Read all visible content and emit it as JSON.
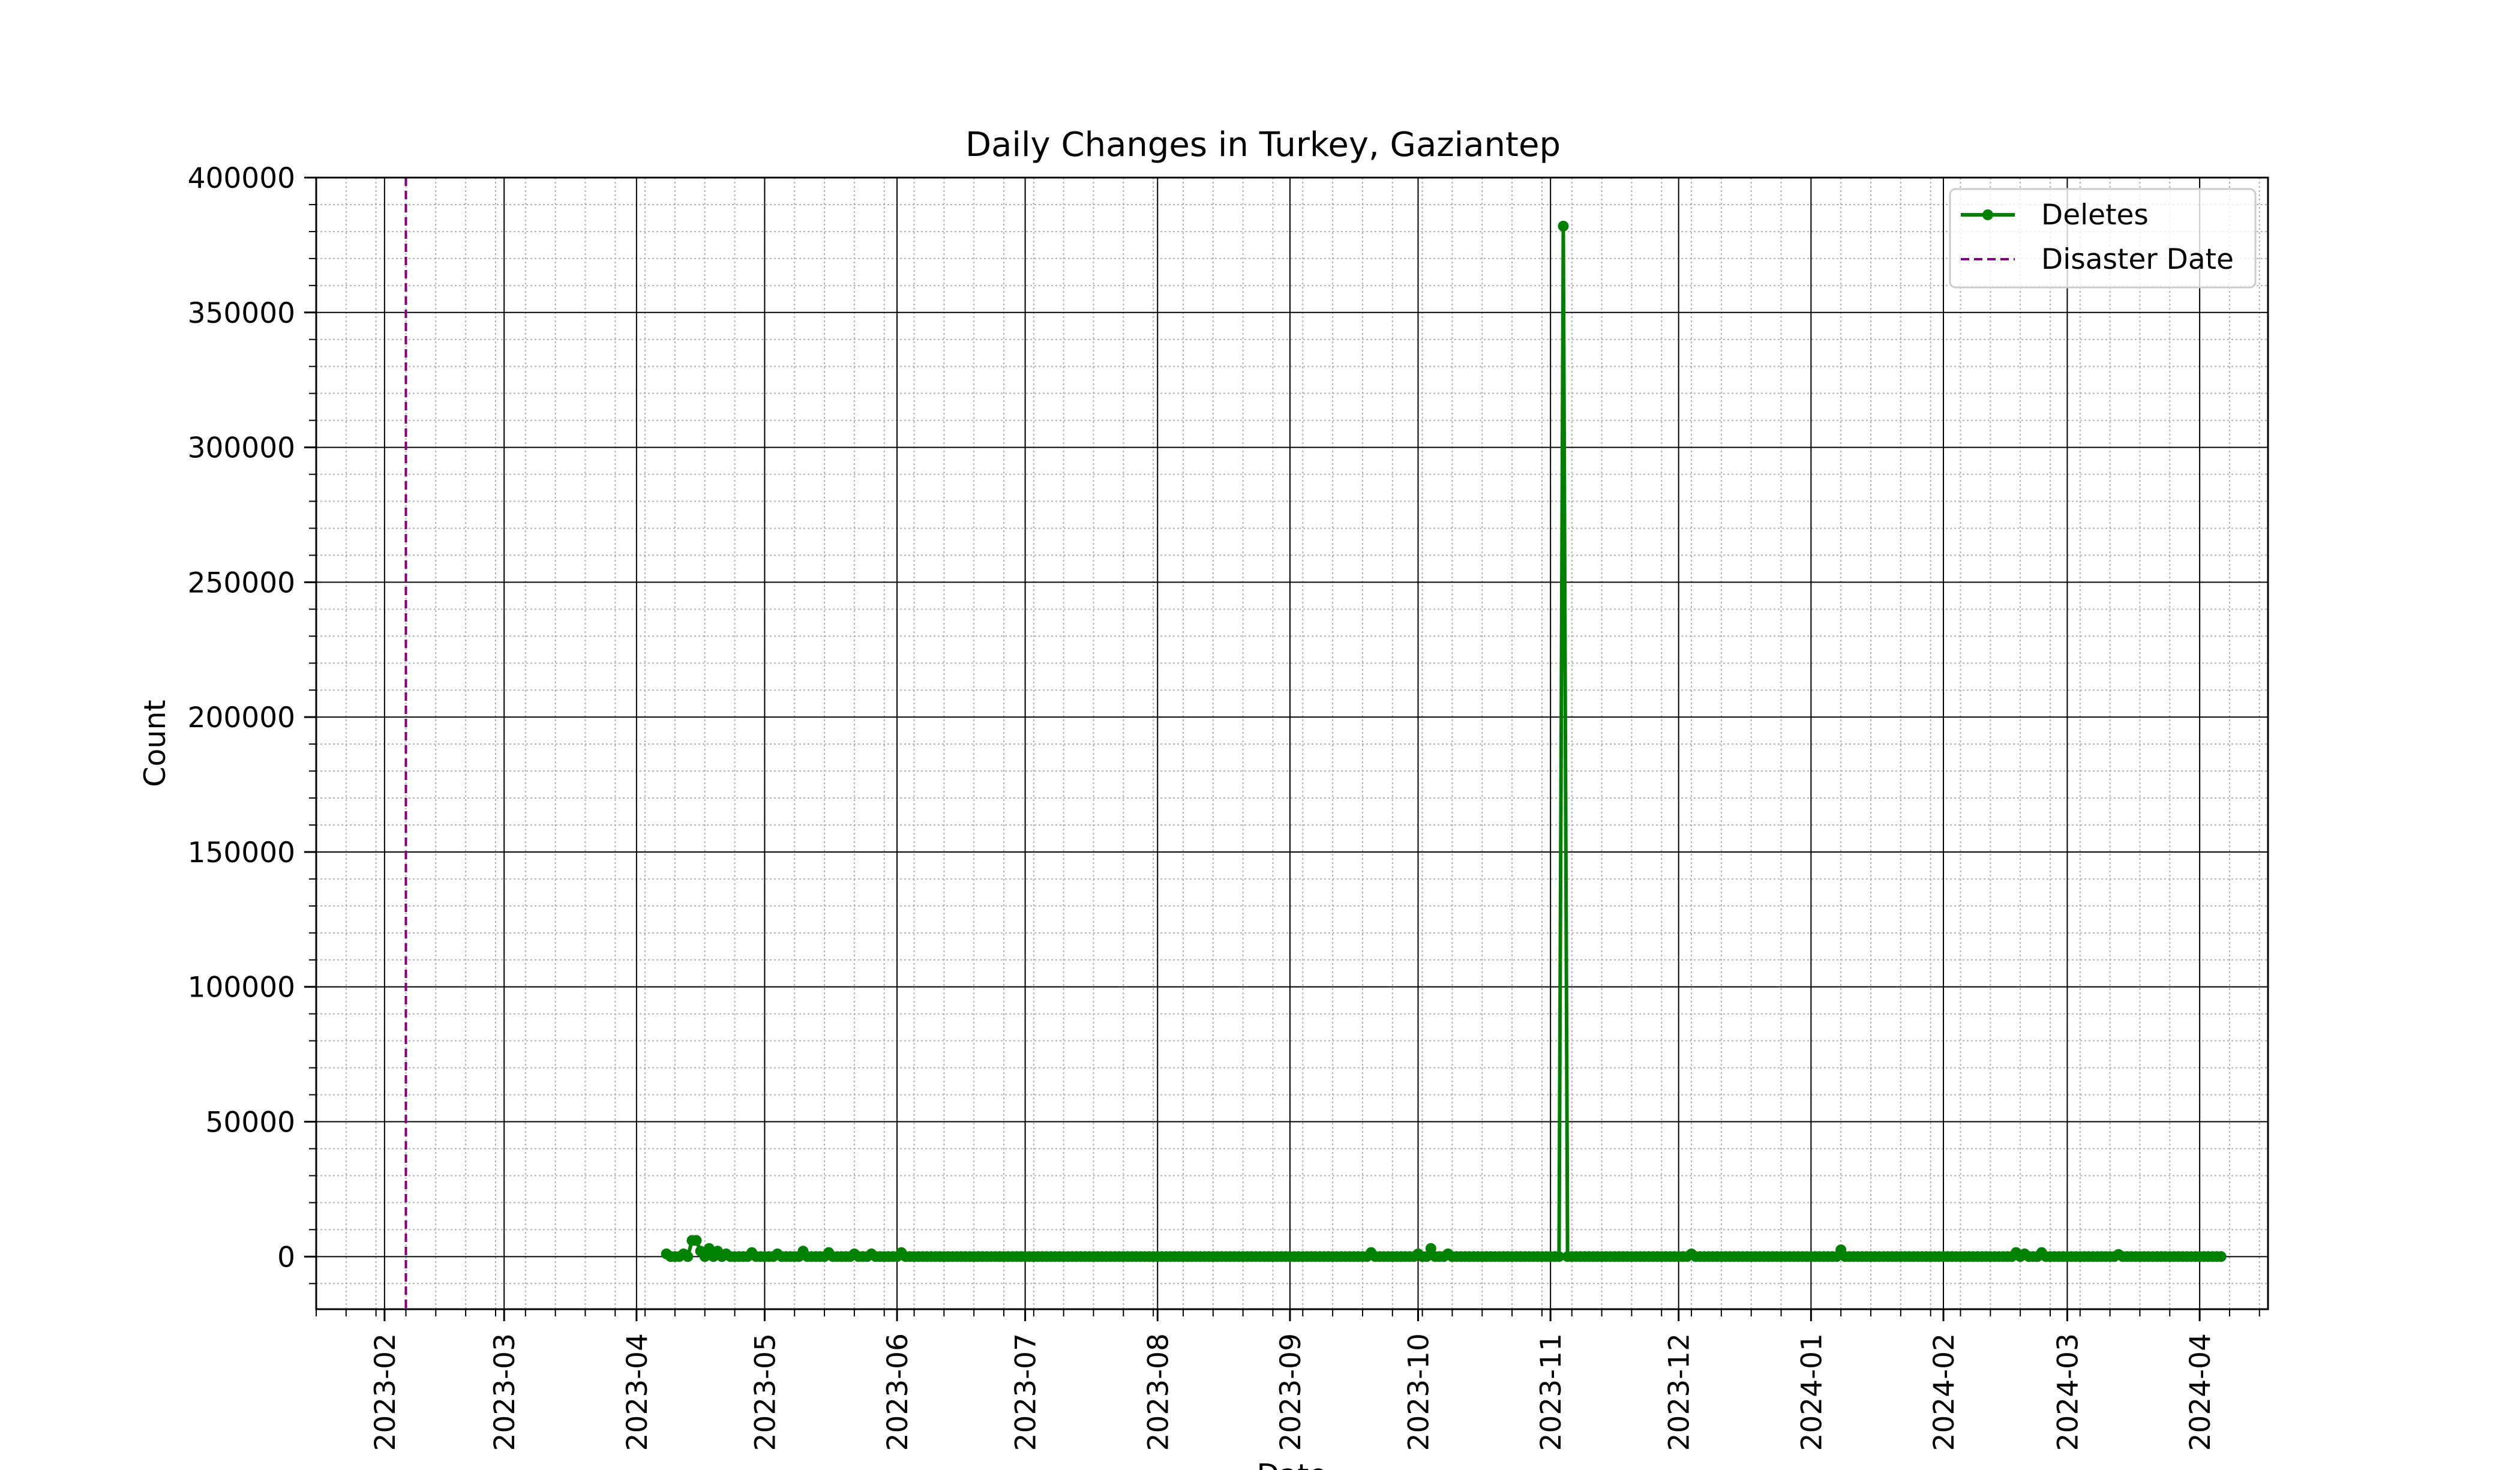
{
  "chart_data": {
    "type": "line",
    "title": "Daily Changes in Turkey, Gaziantep",
    "xlabel": "Date",
    "ylabel": "Count",
    "ylim": [
      -19500,
      400000
    ],
    "xlim": [
      "2023-01-16",
      "2024-04-17"
    ],
    "y_ticks": [
      0,
      50000,
      100000,
      150000,
      200000,
      250000,
      300000,
      350000,
      400000
    ],
    "y_tick_labels": [
      "0",
      "50000",
      "100000",
      "150000",
      "200000",
      "250000",
      "300000",
      "350000",
      "400000"
    ],
    "x_ticks": [
      "2023-02-01",
      "2023-03-01",
      "2023-04-01",
      "2023-05-01",
      "2023-06-01",
      "2023-07-01",
      "2023-08-01",
      "2023-09-01",
      "2023-10-01",
      "2023-11-01",
      "2023-12-01",
      "2024-01-01",
      "2024-02-01",
      "2024-03-01",
      "2024-04-01"
    ],
    "x_tick_labels": [
      "2023-02",
      "2023-03",
      "2023-04",
      "2023-05",
      "2023-06",
      "2023-07",
      "2023-08",
      "2023-09",
      "2023-10",
      "2023-11",
      "2023-12",
      "2024-01",
      "2024-02",
      "2024-03",
      "2024-04"
    ],
    "grid": "major solid, minor dotted",
    "legend_position": "upper right",
    "series": [
      {
        "name": "Deletes",
        "color": "#008000",
        "marker": "circle",
        "baseline_value": 0,
        "baseline_start": "2023-04-08",
        "baseline_end": "2024-04-06",
        "notable_points": [
          {
            "date": "2023-04-08",
            "value": 1000
          },
          {
            "date": "2023-04-10",
            "value": 0
          },
          {
            "date": "2023-04-12",
            "value": 1000
          },
          {
            "date": "2023-04-14",
            "value": 6000
          },
          {
            "date": "2023-04-15",
            "value": 6000
          },
          {
            "date": "2023-04-16",
            "value": 2000
          },
          {
            "date": "2023-04-18",
            "value": 3000
          },
          {
            "date": "2023-04-20",
            "value": 2000
          },
          {
            "date": "2023-04-22",
            "value": 1000
          },
          {
            "date": "2023-04-28",
            "value": 1500
          },
          {
            "date": "2023-05-04",
            "value": 1000
          },
          {
            "date": "2023-05-10",
            "value": 2000
          },
          {
            "date": "2023-05-16",
            "value": 1500
          },
          {
            "date": "2023-05-22",
            "value": 1000
          },
          {
            "date": "2023-05-26",
            "value": 1000
          },
          {
            "date": "2023-06-02",
            "value": 1500
          },
          {
            "date": "2023-09-20",
            "value": 1500
          },
          {
            "date": "2023-10-01",
            "value": 1000
          },
          {
            "date": "2023-10-04",
            "value": 3000
          },
          {
            "date": "2023-10-08",
            "value": 1000
          },
          {
            "date": "2023-11-03",
            "value": 0
          },
          {
            "date": "2023-11-04",
            "value": 382000
          },
          {
            "date": "2023-11-05",
            "value": 0
          },
          {
            "date": "2023-12-04",
            "value": 1000
          },
          {
            "date": "2024-01-08",
            "value": 2500
          },
          {
            "date": "2024-02-18",
            "value": 1500
          },
          {
            "date": "2024-02-20",
            "value": 1000
          },
          {
            "date": "2024-02-24",
            "value": 1500
          },
          {
            "date": "2024-03-13",
            "value": 800
          }
        ]
      },
      {
        "name": "Disaster Date",
        "color": "#800080",
        "line_style": "dashed",
        "date": "2023-02-06"
      }
    ]
  }
}
